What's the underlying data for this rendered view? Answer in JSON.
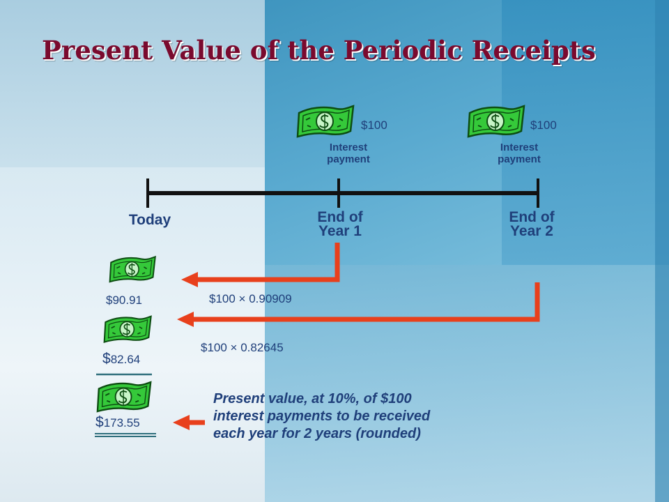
{
  "title": "Present Value of the Periodic Receipts",
  "colors": {
    "title": "#7a0a2e",
    "text": "#1f3f7a",
    "arrow": "#e8401c",
    "timeline": "#111111",
    "bill": "#3bd13b"
  },
  "icons": [
    "money-bill-icon"
  ],
  "timeline": {
    "points": [
      {
        "label_line1": "Today",
        "label_line2": ""
      },
      {
        "label_line1": "End of",
        "label_line2": "Year 1"
      },
      {
        "label_line1": "End of",
        "label_line2": "Year 2"
      }
    ]
  },
  "payments": [
    {
      "amount": "$100",
      "label_line1": "Interest",
      "label_line2": "payment"
    },
    {
      "amount": "$100",
      "label_line1": "Interest",
      "label_line2": "payment"
    }
  ],
  "discounts": [
    {
      "calc": "$100 × 0.90909",
      "result_currency": "$",
      "result_value": "90.91"
    },
    {
      "calc": "$100 × 0.82645",
      "result_currency": "$",
      "result_value": "82.64"
    }
  ],
  "total": {
    "currency": "$",
    "value": "173.55"
  },
  "note": {
    "line1": "Present value, at 10%, of $100",
    "line2": "interest payments to be received",
    "line3": "each year for 2 years (rounded)"
  }
}
